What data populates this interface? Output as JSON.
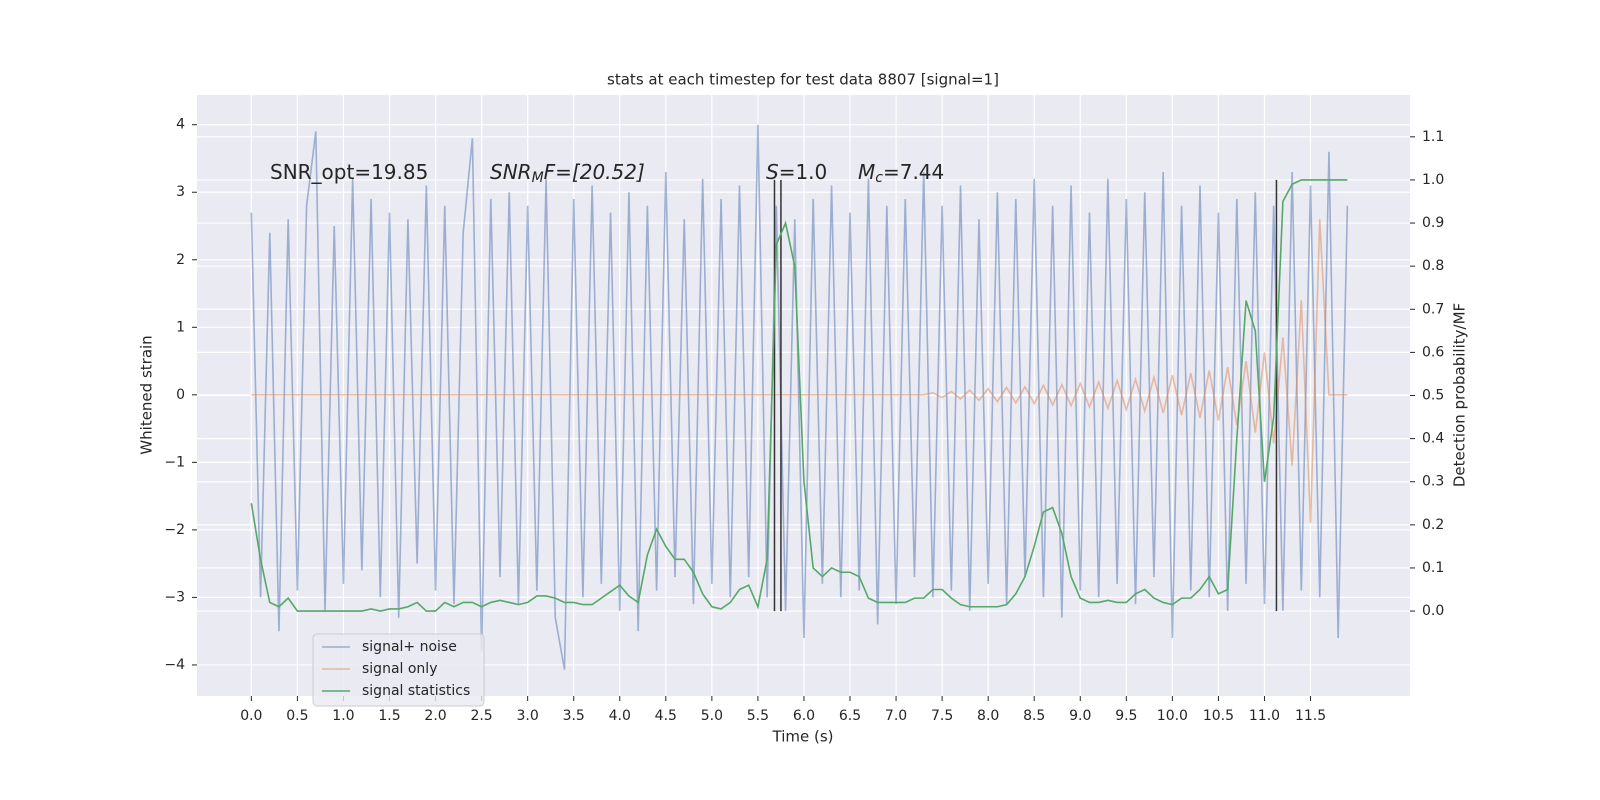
{
  "chart_data": {
    "type": "line",
    "title": "stats at each timestep for test data 8807 [signal=1]",
    "xlabel": "Time (s)",
    "ylabel": "Whitened strain",
    "y2label": "Detection probability/MF",
    "annotations": [
      {
        "main": "SNR_opt=19.85"
      },
      {
        "main": "SNR",
        "sub": "M",
        "rest": "F=[20.52]"
      },
      {
        "main": "S",
        "rest": "=1.0"
      },
      {
        "main": "M",
        "sub": "c",
        "rest": "=7.44"
      }
    ],
    "x": [
      0.0,
      0.1,
      0.2,
      0.3,
      0.4,
      0.5,
      0.6,
      0.7,
      0.8,
      0.9,
      1.0,
      1.1,
      1.2,
      1.3,
      1.4,
      1.5,
      1.6,
      1.7,
      1.8,
      1.9,
      2.0,
      2.1,
      2.2,
      2.3,
      2.4,
      2.5,
      2.6,
      2.7,
      2.8,
      2.9,
      3.0,
      3.1,
      3.2,
      3.3,
      3.4,
      3.5,
      3.6,
      3.7,
      3.8,
      3.9,
      4.0,
      4.1,
      4.2,
      4.3,
      4.4,
      4.5,
      4.6,
      4.7,
      4.8,
      4.9,
      5.0,
      5.1,
      5.2,
      5.3,
      5.4,
      5.5,
      5.6,
      5.7,
      5.8,
      5.9,
      6.0,
      6.1,
      6.2,
      6.3,
      6.4,
      6.5,
      6.6,
      6.7,
      6.8,
      6.9,
      7.0,
      7.1,
      7.2,
      7.3,
      7.4,
      7.5,
      7.6,
      7.7,
      7.8,
      7.9,
      8.0,
      8.1,
      8.2,
      8.3,
      8.4,
      8.5,
      8.6,
      8.7,
      8.8,
      8.9,
      9.0,
      9.1,
      9.2,
      9.3,
      9.4,
      9.5,
      9.6,
      9.7,
      9.8,
      9.9,
      10.0,
      10.1,
      10.2,
      10.3,
      10.4,
      10.5,
      10.6,
      10.7,
      10.8,
      10.9,
      11.0,
      11.1,
      11.2,
      11.3,
      11.4,
      11.5,
      11.6,
      11.7,
      11.8,
      11.9
    ],
    "series": [
      {
        "name": "signal+ noise",
        "color": "#4c72b0",
        "opacity": 0.5,
        "values": [
          2.7,
          -3.0,
          2.4,
          -3.5,
          2.6,
          -2.9,
          2.8,
          3.9,
          -3.2,
          2.5,
          -2.8,
          3.2,
          -2.6,
          2.9,
          -3.0,
          2.7,
          -3.3,
          2.6,
          -2.5,
          3.1,
          -2.9,
          2.8,
          -3.1,
          2.4,
          3.8,
          -3.8,
          2.9,
          -2.7,
          3.0,
          -3.1,
          2.8,
          -2.9,
          3.2,
          -3.3,
          -4.07,
          2.9,
          -3.0,
          3.1,
          -2.8,
          2.7,
          -3.2,
          3.0,
          -3.5,
          2.8,
          -2.9,
          3.3,
          -2.7,
          2.6,
          -3.1,
          3.2,
          -2.8,
          2.9,
          -3.0,
          3.1,
          -2.7,
          4.0,
          -3.0,
          2.8,
          -3.2,
          2.6,
          -3.6,
          2.9,
          -2.8,
          3.1,
          -3.0,
          2.7,
          -2.9,
          3.2,
          -3.4,
          2.8,
          -3.1,
          2.9,
          -2.7,
          3.3,
          -3.0,
          2.8,
          -2.9,
          3.1,
          -3.2,
          2.6,
          -2.8,
          3.0,
          -3.1,
          2.9,
          -2.7,
          3.2,
          -3.0,
          2.8,
          -3.3,
          3.1,
          -2.9,
          2.7,
          -3.0,
          3.2,
          -2.8,
          2.9,
          -3.1,
          3.0,
          -2.7,
          3.3,
          -3.6,
          2.8,
          -2.9,
          3.1,
          -3.0,
          2.7,
          -3.2,
          2.9,
          -2.8,
          3.0,
          -3.1,
          2.8,
          -3.2,
          3.3,
          -2.9,
          3.1,
          -3.0,
          3.6,
          -3.6,
          2.8
        ]
      },
      {
        "name": "signal only",
        "color": "#dd8452",
        "opacity": 0.5,
        "values": [
          0,
          0,
          0,
          0,
          0,
          0,
          0,
          0,
          0,
          0,
          0,
          0,
          0,
          0,
          0,
          0,
          0,
          0,
          0,
          0,
          0,
          0,
          0,
          0,
          0,
          0,
          0,
          0,
          0,
          0,
          0,
          0,
          0,
          0,
          0,
          0,
          0,
          0,
          0,
          0,
          0,
          0,
          0,
          0,
          0,
          0,
          0,
          0,
          0,
          0,
          0,
          0,
          0,
          0,
          0,
          0,
          0,
          0,
          0,
          0,
          0,
          0,
          0,
          0,
          0,
          0,
          0,
          0,
          0,
          0,
          0,
          0,
          0,
          0,
          0.03,
          -0.04,
          0.05,
          -0.06,
          0.07,
          -0.08,
          0.09,
          -0.1,
          0.11,
          -0.12,
          0.12,
          -0.13,
          0.14,
          -0.15,
          0.15,
          -0.16,
          0.17,
          -0.18,
          0.19,
          -0.2,
          0.21,
          -0.22,
          0.23,
          -0.24,
          0.26,
          -0.27,
          0.29,
          -0.3,
          0.32,
          -0.34,
          0.36,
          -0.38,
          0.41,
          -0.45,
          0.5,
          -0.56,
          0.63,
          -0.72,
          0.85,
          -1.05,
          1.4,
          -1.9,
          2.6,
          0,
          0,
          0
        ]
      },
      {
        "name": "signal statistics",
        "color": "#55a868",
        "axis": "y2",
        "values": [
          0.25,
          0.12,
          0.02,
          0.01,
          0.03,
          0.0,
          0.0,
          0.0,
          0.0,
          0.0,
          0.0,
          0.0,
          0.0,
          0.005,
          0.0,
          0.005,
          0.005,
          0.01,
          0.02,
          0.0,
          0.0,
          0.02,
          0.01,
          0.02,
          0.02,
          0.01,
          0.02,
          0.025,
          0.02,
          0.015,
          0.02,
          0.035,
          0.035,
          0.03,
          0.02,
          0.02,
          0.015,
          0.015,
          0.03,
          0.045,
          0.06,
          0.035,
          0.02,
          0.13,
          0.19,
          0.15,
          0.12,
          0.12,
          0.09,
          0.04,
          0.01,
          0.005,
          0.02,
          0.05,
          0.06,
          0.01,
          0.12,
          0.85,
          0.9,
          0.8,
          0.3,
          0.1,
          0.08,
          0.1,
          0.09,
          0.09,
          0.08,
          0.03,
          0.02,
          0.02,
          0.02,
          0.02,
          0.03,
          0.03,
          0.05,
          0.05,
          0.03,
          0.015,
          0.01,
          0.01,
          0.01,
          0.01,
          0.015,
          0.04,
          0.08,
          0.15,
          0.23,
          0.24,
          0.18,
          0.08,
          0.03,
          0.02,
          0.02,
          0.025,
          0.02,
          0.02,
          0.04,
          0.05,
          0.03,
          0.02,
          0.015,
          0.03,
          0.03,
          0.05,
          0.08,
          0.04,
          0.05,
          0.4,
          0.72,
          0.65,
          0.3,
          0.45,
          0.95,
          0.99,
          1.0,
          1.0,
          1.0,
          1.0,
          1.0,
          1.0
        ]
      }
    ],
    "vlines": {
      "x": [
        5.68,
        5.75,
        11.13
      ],
      "color": "#333333",
      "span": [
        0,
        1
      ]
    },
    "xlim": [
      -0.59,
      12.58
    ],
    "ylim": [
      -4.46,
      4.44
    ],
    "y2lim": [
      -0.197,
      1.197
    ],
    "xticks": [
      {
        "value": 0,
        "label": "0.0"
      },
      0.5,
      {
        "value": 1,
        "label": "1.0"
      },
      1.5,
      {
        "value": 2,
        "label": "2.0"
      },
      2.5,
      {
        "value": 3,
        "label": "3.0"
      },
      3.5,
      {
        "value": 4,
        "label": "4.0"
      },
      4.5,
      {
        "value": 5,
        "label": "5.0"
      },
      5.5,
      {
        "value": 6,
        "label": "6.0"
      },
      6.5,
      {
        "value": 7,
        "label": "7.0"
      },
      7.5,
      {
        "value": 8,
        "label": "8.0"
      },
      8.5,
      {
        "value": 9,
        "label": "9.0"
      },
      9.5,
      {
        "value": 10,
        "label": "10.0"
      },
      10.5,
      {
        "value": 11,
        "label": "11.0"
      },
      11.5
    ],
    "yticks": [
      {
        "value": -4,
        "label": "−4"
      },
      {
        "value": -3,
        "label": "−3"
      },
      {
        "value": -2,
        "label": "−2"
      },
      {
        "value": -1,
        "label": "−1"
      },
      0,
      1,
      2,
      3,
      4
    ],
    "y2ticks": [
      {
        "value": 0,
        "label": "0.0"
      },
      0.1,
      0.2,
      0.3,
      0.4,
      0.5,
      0.6,
      0.7,
      0.8,
      0.9,
      {
        "value": 1,
        "label": "1.0"
      },
      1.1
    ],
    "grid": true,
    "legend": "lower left"
  }
}
